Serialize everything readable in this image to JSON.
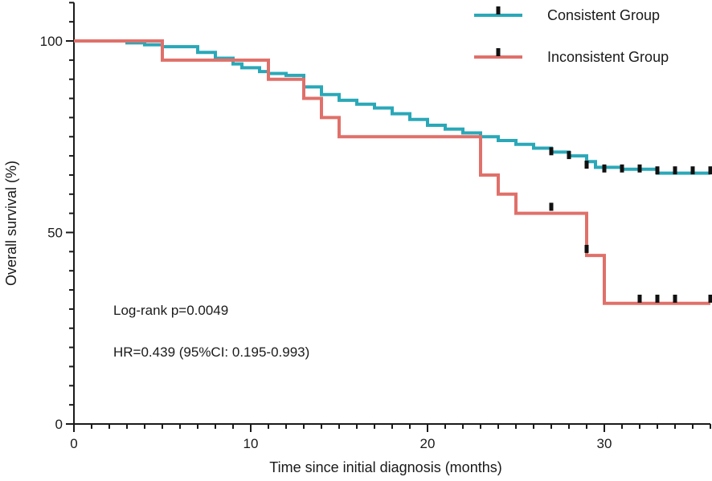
{
  "chart_data": {
    "type": "line",
    "subtype": "kaplan-meier",
    "title": "",
    "xlabel": "Time since initial diagnosis (months)",
    "ylabel": "Overall survival (%)",
    "xlim": [
      0,
      36
    ],
    "ylim": [
      0,
      110
    ],
    "xticks": [
      0,
      10,
      20,
      30
    ],
    "yticks": [
      0,
      50,
      100
    ],
    "grid": false,
    "legend_position": "top-right",
    "annotations": [
      "Log-rank   p=0.0049",
      "HR=0.439  (95%CI: 0.195-0.993)"
    ],
    "series": [
      {
        "name": "Consistent Group",
        "color": "#2aa8b8",
        "steps": [
          [
            0,
            100
          ],
          [
            3,
            99.5
          ],
          [
            4,
            99
          ],
          [
            5,
            98.5
          ],
          [
            7,
            97
          ],
          [
            8,
            95.5
          ],
          [
            9,
            94
          ],
          [
            9.5,
            93
          ],
          [
            10.5,
            92
          ],
          [
            11,
            91.5
          ],
          [
            12,
            91
          ],
          [
            13,
            88
          ],
          [
            14,
            86
          ],
          [
            15,
            84.5
          ],
          [
            16,
            83.5
          ],
          [
            17,
            82.5
          ],
          [
            18,
            81
          ],
          [
            19,
            79.5
          ],
          [
            20,
            78
          ],
          [
            21,
            77
          ],
          [
            22,
            76
          ],
          [
            23,
            75
          ],
          [
            24,
            74
          ],
          [
            25,
            73
          ],
          [
            26,
            72
          ],
          [
            27,
            71
          ],
          [
            28,
            70
          ],
          [
            29,
            68.5
          ],
          [
            29.5,
            67
          ],
          [
            31,
            66.5
          ],
          [
            33,
            65.5
          ],
          [
            36,
            65.5
          ]
        ],
        "censored": [
          [
            27,
            71
          ],
          [
            28,
            70
          ],
          [
            29,
            67.5
          ],
          [
            30,
            66.5
          ],
          [
            31,
            66.5
          ],
          [
            32,
            66.5
          ],
          [
            33,
            66
          ],
          [
            34,
            66
          ],
          [
            35,
            66
          ],
          [
            36,
            66
          ]
        ]
      },
      {
        "name": "Inconsistent Group",
        "color": "#e0706a",
        "steps": [
          [
            0,
            100
          ],
          [
            5,
            95
          ],
          [
            11,
            90
          ],
          [
            13,
            85
          ],
          [
            14,
            80
          ],
          [
            15,
            75
          ],
          [
            23,
            70
          ],
          [
            23,
            65
          ],
          [
            24,
            60
          ],
          [
            25,
            55
          ],
          [
            29,
            50
          ],
          [
            29,
            44
          ],
          [
            30,
            31.5
          ],
          [
            36,
            31.5
          ]
        ],
        "censored": [
          [
            27,
            56.5
          ],
          [
            29,
            45.5
          ],
          [
            32,
            32.5
          ],
          [
            33,
            32.5
          ],
          [
            34,
            32.5
          ],
          [
            36,
            32.5
          ]
        ]
      }
    ]
  }
}
